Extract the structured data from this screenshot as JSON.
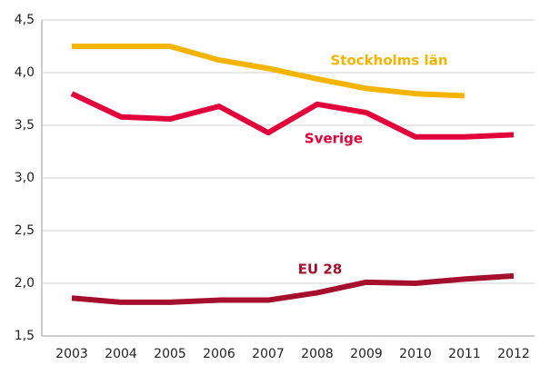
{
  "chart_data": {
    "type": "line",
    "categories": [
      "2003",
      "2004",
      "2005",
      "2006",
      "2007",
      "2008",
      "2009",
      "2010",
      "2011",
      "2012"
    ],
    "series": [
      {
        "name": "Stockholms län",
        "color": "#f5b400",
        "values": [
          4.25,
          4.25,
          4.25,
          4.12,
          4.04,
          3.94,
          3.85,
          3.8,
          3.78,
          null
        ]
      },
      {
        "name": "Sverige",
        "color": "#e2003a",
        "values": [
          3.8,
          3.58,
          3.56,
          3.68,
          3.43,
          3.7,
          3.62,
          3.39,
          3.39,
          3.41
        ]
      },
      {
        "name": "EU 28",
        "color": "#a50f2d",
        "values": [
          1.86,
          1.82,
          1.82,
          1.84,
          1.84,
          1.91,
          2.01,
          2.0,
          2.04,
          2.07
        ]
      }
    ],
    "ylim": [
      1.5,
      4.5
    ],
    "yticks": [
      {
        "value": 1.5,
        "label": "1,5"
      },
      {
        "value": 2.0,
        "label": "2,0"
      },
      {
        "value": 2.5,
        "label": "2,5"
      },
      {
        "value": 3.0,
        "label": "3,0"
      },
      {
        "value": 3.5,
        "label": "3,5"
      },
      {
        "value": 4.0,
        "label": "4,0"
      },
      {
        "value": 4.5,
        "label": "4,5"
      }
    ],
    "grid": true
  }
}
